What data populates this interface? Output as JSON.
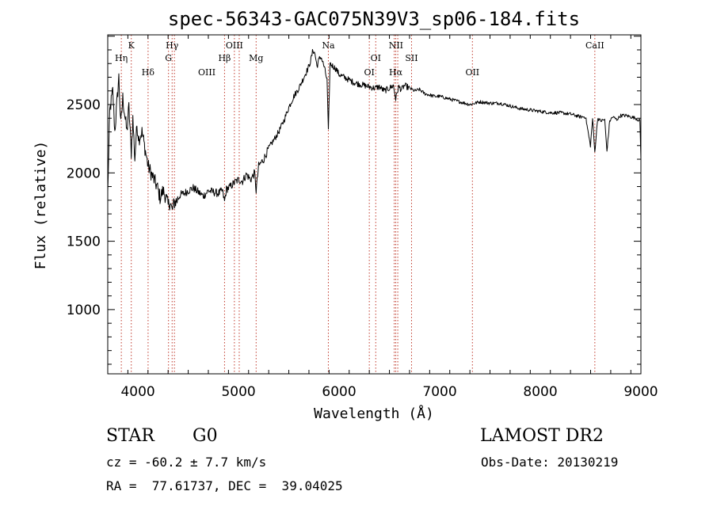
{
  "chart_data": {
    "type": "line",
    "title": "spec-56343-GAC075N39V3_sp06-184.fits",
    "xlabel": "Wavelength (Å)",
    "ylabel": "Flux (relative)",
    "xlim": [
      3700,
      9000
    ],
    "ylim": [
      530,
      3010
    ],
    "xticks": [
      4000,
      5000,
      6000,
      7000,
      8000,
      9000
    ],
    "yticks": [
      1000,
      1500,
      2000,
      2500
    ],
    "x_minor_step": 200,
    "y_minor_step": 100,
    "series": [
      {
        "x": [
          3700,
          3720,
          3750,
          3770,
          3790,
          3810,
          3830,
          3850,
          3870,
          3890,
          3910,
          3934,
          3950,
          3969,
          3990,
          4010,
          4040,
          4070,
          4101,
          4130,
          4160,
          4190,
          4220,
          4250,
          4280,
          4300,
          4320,
          4340,
          4360,
          4390,
          4420,
          4460,
          4500,
          4550,
          4600,
          4650,
          4700,
          4750,
          4800,
          4840,
          4861,
          4880,
          4920,
          4960,
          5000,
          5040,
          5080,
          5120,
          5160,
          5175,
          5200,
          5250,
          5300,
          5350,
          5400,
          5450,
          5500,
          5550,
          5600,
          5650,
          5700,
          5720,
          5740,
          5760,
          5780,
          5800,
          5820,
          5850,
          5880,
          5893,
          5910,
          5940,
          5970,
          6000,
          6050,
          6100,
          6150,
          6200,
          6250,
          6300,
          6350,
          6400,
          6450,
          6500,
          6540,
          6563,
          6590,
          6620,
          6650,
          6700,
          6750,
          6800,
          6850,
          6900,
          6950,
          7000,
          7100,
          7200,
          7300,
          7400,
          7500,
          7600,
          7700,
          7800,
          7900,
          8000,
          8100,
          8200,
          8300,
          8400,
          8450,
          8498,
          8520,
          8542,
          8570,
          8600,
          8640,
          8662,
          8690,
          8720,
          8760,
          8800,
          8850,
          8900,
          8950,
          8990,
          9000
        ],
        "y": [
          1850,
          2450,
          2600,
          2300,
          2500,
          2700,
          2350,
          2550,
          2420,
          2300,
          2480,
          2150,
          2400,
          2100,
          2350,
          2250,
          2300,
          2180,
          2050,
          2000,
          1950,
          1900,
          1820,
          1870,
          1820,
          1760,
          1790,
          1720,
          1780,
          1800,
          1840,
          1850,
          1870,
          1890,
          1860,
          1830,
          1870,
          1860,
          1850,
          1870,
          1790,
          1880,
          1900,
          1930,
          1950,
          1940,
          1990,
          1950,
          2000,
          1870,
          2050,
          2100,
          2180,
          2240,
          2300,
          2380,
          2480,
          2560,
          2620,
          2700,
          2780,
          2830,
          2900,
          2870,
          2780,
          2830,
          2850,
          2780,
          2680,
          2300,
          2800,
          2780,
          2760,
          2720,
          2700,
          2680,
          2660,
          2650,
          2640,
          2630,
          2620,
          2630,
          2600,
          2620,
          2640,
          2540,
          2630,
          2610,
          2640,
          2620,
          2600,
          2610,
          2580,
          2570,
          2560,
          2560,
          2540,
          2520,
          2500,
          2520,
          2510,
          2510,
          2490,
          2470,
          2460,
          2450,
          2440,
          2440,
          2430,
          2410,
          2410,
          2200,
          2400,
          2150,
          2400,
          2380,
          2390,
          2160,
          2380,
          2410,
          2390,
          2420,
          2420,
          2410,
          2400,
          2380,
          2100
        ]
      }
    ],
    "lines": [
      {
        "name": "Hη",
        "wave": 3835,
        "row": 1
      },
      {
        "name": "K",
        "wave": 3934,
        "row": 0
      },
      {
        "name": "Hδ",
        "wave": 4101,
        "row": 2
      },
      {
        "name": "Hγ",
        "wave": 4340,
        "row": 0
      },
      {
        "name": "G",
        "wave": 4304,
        "row": 1
      },
      {
        "name": "OIII",
        "wave": 4363,
        "row": 2
      },
      {
        "name": "OIII",
        "wave": 4959,
        "row": 0
      },
      {
        "name": "Hβ",
        "wave": 4861,
        "row": 1
      },
      {
        "name": "Mg",
        "wave": 5175,
        "row": 1
      },
      {
        "name": "OIII",
        "wave": 5007,
        "row": 2
      },
      {
        "name": "Na",
        "wave": 5893,
        "row": 0
      },
      {
        "name": "OI",
        "wave": 6364,
        "row": 1
      },
      {
        "name": "OI",
        "wave": 6300,
        "row": 2
      },
      {
        "name": "NII",
        "wave": 6548,
        "row": 0
      },
      {
        "name": "NII",
        "wave": 6583,
        "row": 0
      },
      {
        "name": "SII",
        "wave": 6720,
        "row": 1
      },
      {
        "name": "Hα",
        "wave": 6563,
        "row": 2
      },
      {
        "name": "OII",
        "wave": 7325,
        "row": 2
      },
      {
        "name": "CaII",
        "wave": 8542,
        "row": 0
      }
    ],
    "line_label_order": [
      "Hη",
      "K",
      "Hδ",
      "Hγ",
      "G",
      "OIII",
      "OIII",
      "Hβ",
      "Mg",
      "OIII",
      "Na",
      "OI",
      "OI",
      "NII",
      "SII",
      "Hα",
      "OII",
      "CaII"
    ],
    "line_color": "#c0392b",
    "grid": false
  },
  "info": {
    "class": "STAR",
    "subclass": "G0",
    "survey": "LAMOST DR2",
    "velocity": "cz = -60.2 ± 7.7 km/s",
    "obs_date": "Obs-Date: 20130219",
    "coords": "RA =  77.61737, DEC =  39.04025"
  }
}
